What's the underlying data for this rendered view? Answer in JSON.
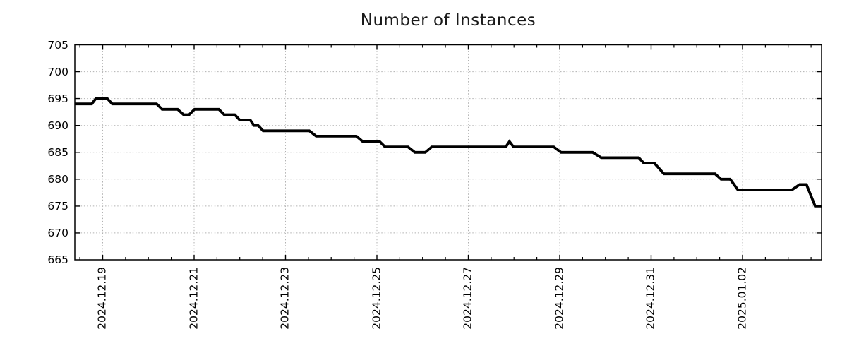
{
  "title": "Number of Instances",
  "chart_data": {
    "type": "line",
    "title": "Number of Instances",
    "xlabel": "",
    "ylabel": "",
    "legend": "none",
    "grid": true,
    "line_color": "#000000",
    "grid_color": "#b1b1b1",
    "axis_color": "#000000",
    "ylim": [
      665,
      705
    ],
    "yticks": [
      665,
      670,
      675,
      680,
      685,
      690,
      695,
      700,
      705
    ],
    "ytick_labels": [
      "665",
      "670",
      "675",
      "680",
      "685",
      "690",
      "695",
      "700",
      "705"
    ],
    "xtick_labels": [
      "2024.12.19",
      "2024.12.21",
      "2024.12.23",
      "2024.12.25",
      "2024.12.27",
      "2024.12.29",
      "2024.12.31",
      "2025.01.02"
    ],
    "xtick_days": [
      1,
      3,
      5,
      7,
      9,
      11,
      13,
      15
    ],
    "x_unit": "days since 2024-12-18 00:00",
    "xlim_days": [
      0.39,
      16.73
    ],
    "minor_tick_interval_days": 0.5,
    "points_day_value": [
      [
        0.39,
        694
      ],
      [
        0.76,
        694
      ],
      [
        0.85,
        695
      ],
      [
        1.1,
        695
      ],
      [
        1.21,
        694
      ],
      [
        2.18,
        694
      ],
      [
        2.3,
        693
      ],
      [
        2.64,
        693
      ],
      [
        2.77,
        692
      ],
      [
        2.89,
        692
      ],
      [
        3.01,
        693
      ],
      [
        3.54,
        693
      ],
      [
        3.66,
        692
      ],
      [
        3.89,
        692
      ],
      [
        4.0,
        691
      ],
      [
        4.23,
        691
      ],
      [
        4.31,
        690
      ],
      [
        4.4,
        690
      ],
      [
        4.51,
        689
      ],
      [
        5.52,
        689
      ],
      [
        5.67,
        688
      ],
      [
        6.55,
        688
      ],
      [
        6.69,
        687
      ],
      [
        7.06,
        687
      ],
      [
        7.18,
        686
      ],
      [
        7.68,
        686
      ],
      [
        7.83,
        685
      ],
      [
        8.06,
        685
      ],
      [
        8.2,
        686
      ],
      [
        9.82,
        686
      ],
      [
        9.9,
        687
      ],
      [
        9.99,
        686
      ],
      [
        10.87,
        686
      ],
      [
        11.03,
        685
      ],
      [
        11.72,
        685
      ],
      [
        11.91,
        684
      ],
      [
        12.73,
        684
      ],
      [
        12.84,
        683
      ],
      [
        13.07,
        683
      ],
      [
        13.28,
        681
      ],
      [
        14.4,
        681
      ],
      [
        14.53,
        680
      ],
      [
        14.73,
        680
      ],
      [
        14.9,
        678
      ],
      [
        16.08,
        678
      ],
      [
        16.25,
        679
      ],
      [
        16.4,
        679
      ],
      [
        16.59,
        675
      ],
      [
        16.73,
        675
      ]
    ]
  }
}
